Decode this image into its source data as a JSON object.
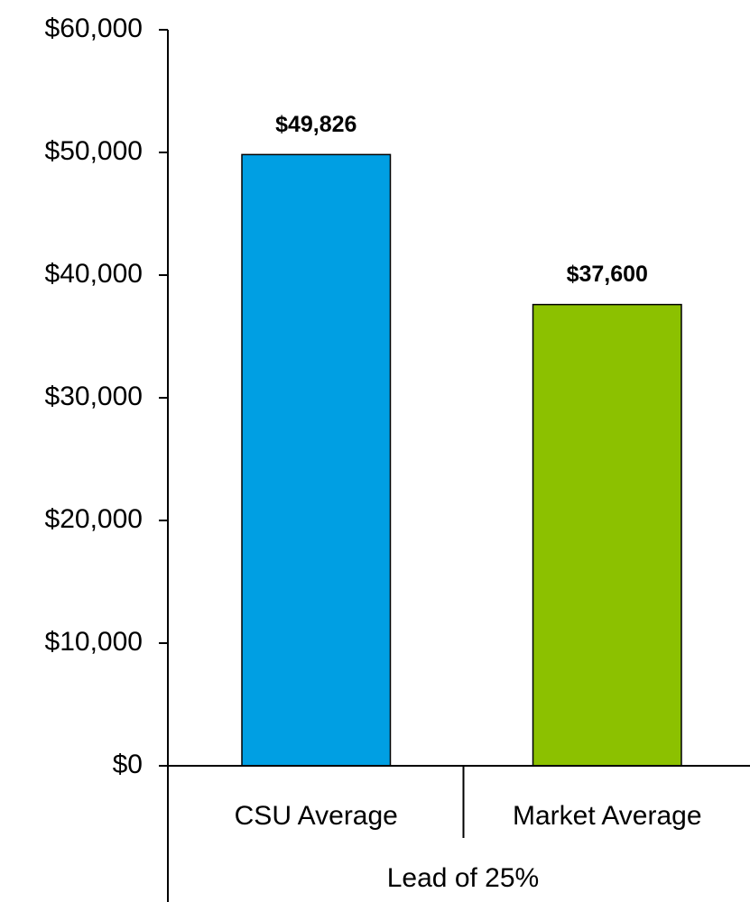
{
  "chart_data": {
    "type": "bar",
    "categories": [
      "CSU Average",
      "Market Average"
    ],
    "values": [
      49826,
      37600
    ],
    "value_labels": [
      "$49,826",
      "$37,600"
    ],
    "colors": [
      "#009fe3",
      "#8cc100"
    ],
    "xlabel": "Lead of 25%",
    "ylim": [
      0,
      60000
    ],
    "yticks": [
      {
        "value": 0,
        "label": "$0"
      },
      {
        "value": 10000,
        "label": "$10,000"
      },
      {
        "value": 20000,
        "label": "$20,000"
      },
      {
        "value": 30000,
        "label": "$30,000"
      },
      {
        "value": 40000,
        "label": "$40,000"
      },
      {
        "value": 50000,
        "label": "$50,000"
      },
      {
        "value": 60000,
        "label": "$60,000"
      }
    ],
    "grid": false
  }
}
